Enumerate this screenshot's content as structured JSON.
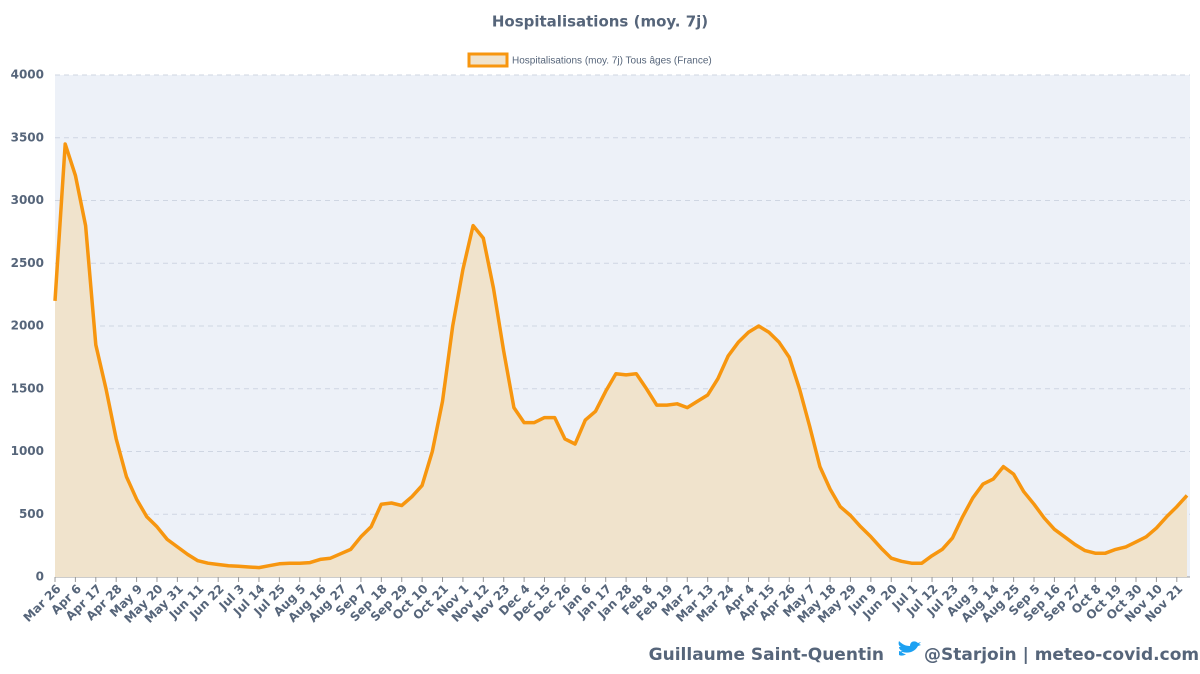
{
  "chart_data": {
    "type": "area",
    "title": "Hospitalisations (moy. 7j)",
    "categories": [
      "Mar 26",
      null,
      "Apr 6",
      null,
      "Apr 17",
      null,
      "Apr 28",
      null,
      "May 9",
      null,
      "May 20",
      null,
      "May 31",
      null,
      "Jun 11",
      null,
      "Jun 22",
      null,
      "Jul 3",
      null,
      "Jul 14",
      null,
      "Jul 25",
      null,
      "Aug 5",
      null,
      "Aug 16",
      null,
      "Aug 27",
      null,
      "Sep 7",
      null,
      "Sep 18",
      null,
      "Sep 29",
      null,
      "Oct 10",
      null,
      "Oct 21",
      null,
      "Nov 1",
      null,
      "Nov 12",
      null,
      "Nov 23",
      null,
      "Dec 4",
      null,
      "Dec 15",
      null,
      "Dec 26",
      null,
      "Jan 6",
      null,
      "Jan 17",
      null,
      "Jan 28",
      null,
      "Feb 8",
      null,
      "Feb 19",
      null,
      "Mar 2",
      null,
      "Mar 13",
      null,
      "Mar 24",
      null,
      "Apr 4",
      null,
      "Apr 15",
      null,
      "Apr 26",
      null,
      "May 7",
      null,
      "May 18",
      null,
      "May 29",
      null,
      "Jun 9",
      null,
      "Jun 20",
      null,
      "Jul 1",
      null,
      "Jul 12",
      null,
      "Jul 23",
      null,
      "Aug 3",
      null,
      "Aug 14",
      null,
      "Aug 25",
      null,
      "Sep 5",
      null,
      "Sep 16",
      null,
      "Sep 27",
      null,
      "Oct 8",
      null,
      "Oct 19",
      null,
      "Oct 30",
      null,
      "Nov 10",
      null,
      "Nov 21",
      null
    ],
    "series": [
      {
        "name": "Hospitalisations (moy. 7j) Tous âges (France)",
        "color": "#f7960f",
        "fill": "#f0e3cc",
        "values": [
          2200,
          3450,
          3200,
          2800,
          1850,
          1500,
          1100,
          800,
          620,
          480,
          400,
          300,
          240,
          180,
          130,
          110,
          100,
          90,
          85,
          80,
          75,
          90,
          105,
          110,
          110,
          115,
          140,
          150,
          185,
          220,
          320,
          400,
          580,
          590,
          570,
          640,
          730,
          1000,
          1400,
          2000,
          2450,
          2800,
          2700,
          2300,
          1800,
          1350,
          1230,
          1230,
          1270,
          1270,
          1100,
          1060,
          1250,
          1320,
          1480,
          1620,
          1610,
          1620,
          1500,
          1370,
          1370,
          1380,
          1350,
          1400,
          1450,
          1580,
          1760,
          1870,
          1950,
          2000,
          1950,
          1870,
          1750,
          1500,
          1200,
          880,
          700,
          560,
          490,
          400,
          320,
          230,
          150,
          125,
          110,
          110,
          170,
          220,
          310,
          480,
          630,
          740,
          780,
          880,
          820,
          680,
          580,
          470,
          380,
          320,
          260,
          210,
          190,
          190,
          220,
          240,
          280,
          320,
          390,
          480,
          560,
          650
        ]
      }
    ],
    "ylim": [
      0,
      4000
    ],
    "yticks": [
      0,
      500,
      1000,
      1500,
      2000,
      2500,
      3000,
      3500,
      4000
    ],
    "grid": true,
    "credit": "Guillaume Saint-Quentin",
    "source": "@Starjoin | meteo-covid.com"
  }
}
